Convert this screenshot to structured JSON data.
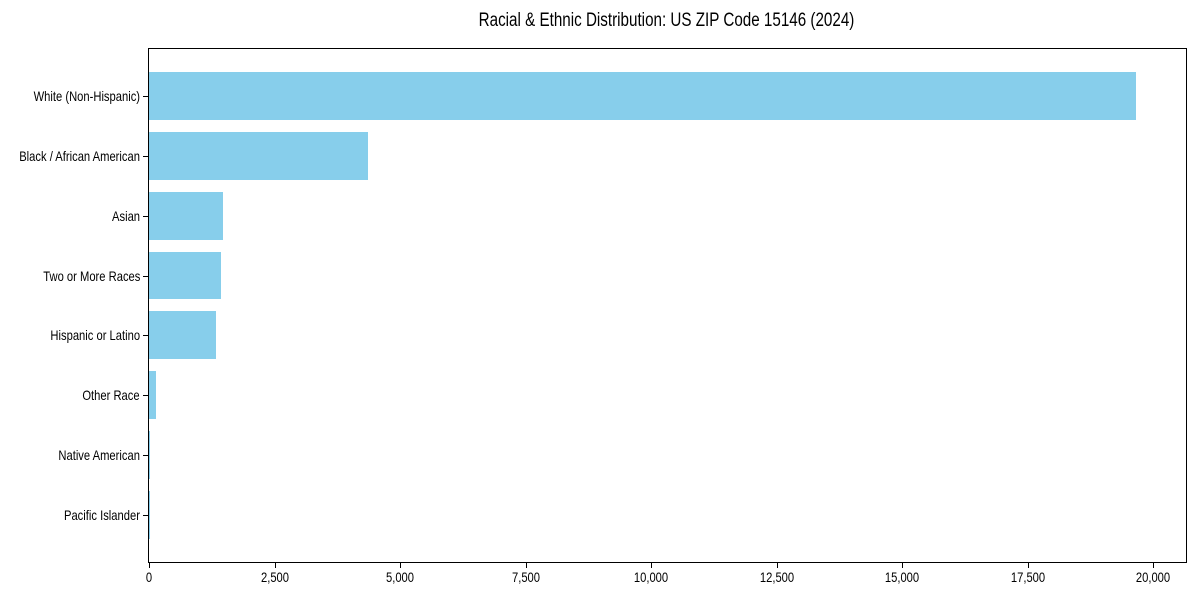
{
  "chart_data": {
    "type": "bar",
    "orientation": "horizontal",
    "title": "Racial & Ethnic Distribution: US ZIP Code 15146 (2024)",
    "categories": [
      "White (Non-Hispanic)",
      "Black / African American",
      "Asian",
      "Two or More Races",
      "Hispanic or Latino",
      "Other Race",
      "Native American",
      "Pacific Islander"
    ],
    "values": [
      19650,
      4360,
      1480,
      1440,
      1340,
      130,
      15,
      5
    ],
    "xlabel": "",
    "ylabel": "",
    "xlim": [
      0,
      20650
    ],
    "xticks": [
      0,
      2500,
      5000,
      7500,
      10000,
      12500,
      15000,
      17500,
      20000
    ],
    "xtick_labels": [
      "0",
      "2,500",
      "5,000",
      "7,500",
      "10,000",
      "12,500",
      "15,000",
      "17,500",
      "20,000"
    ],
    "bar_color": "#87CEEB",
    "axis_color": "#000000",
    "text_color": "#000000",
    "background_color": "#ffffff",
    "grid": false,
    "legend": null
  }
}
